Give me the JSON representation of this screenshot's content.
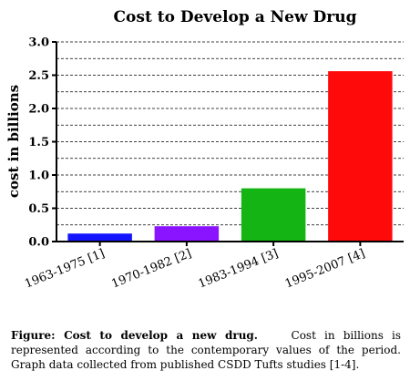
{
  "chart_data": {
    "type": "bar",
    "title": "Cost to Develop a New Drug",
    "xlabel": "",
    "ylabel": "cost in billions",
    "categories": [
      "1963-1975 [1]",
      "1970-1982 [2]",
      "1983-1994 [3]",
      "1995-2007 [4]"
    ],
    "values": [
      0.12,
      0.23,
      0.8,
      2.56
    ],
    "colors": [
      "#1414ff",
      "#8a14ff",
      "#14b414",
      "#ff0a0a"
    ],
    "ylim": [
      0,
      3.0
    ],
    "yticks": [
      "0.0",
      "0.5",
      "1.0",
      "1.5",
      "2.0",
      "2.5",
      "3.0"
    ],
    "grid": "dashed horizontal lines every 0.25"
  },
  "caption": {
    "lead": "Figure: Cost to develop a new drug.",
    "body": "Cost in billions is represented according to the contemporary values of the period. Graph data collected from published CSDD Tufts studies [1-4]."
  }
}
